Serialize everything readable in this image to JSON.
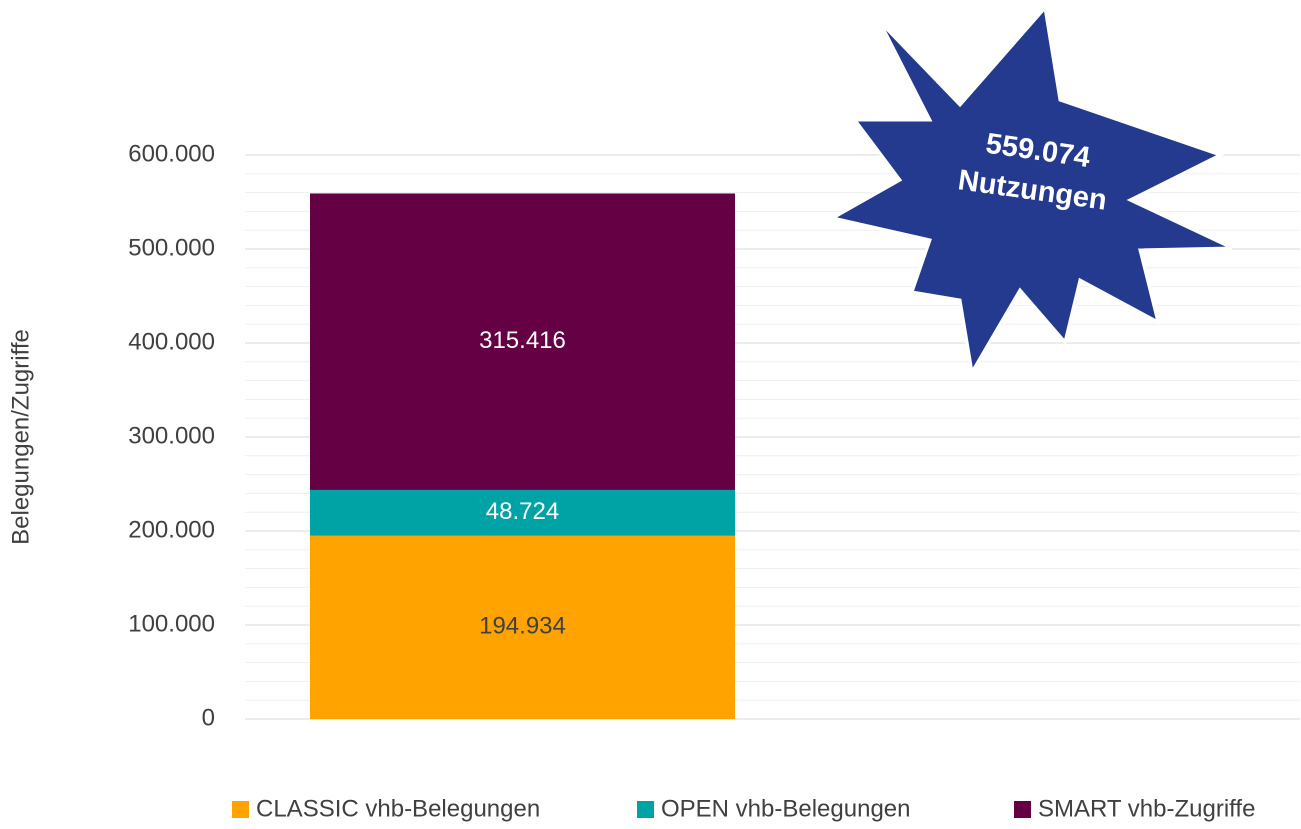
{
  "chart_data": {
    "type": "stacked_bar",
    "categories": [
      null
    ],
    "series": [
      {
        "name": "CLASSIC vhb-Belegungen",
        "color": "#ffa300",
        "label_color": "#404040",
        "values": [
          194934
        ],
        "value_labels": [
          "194.934"
        ]
      },
      {
        "name": "OPEN vhb-Belegungen",
        "color": "#00a3a5",
        "label_color": "#ffffff",
        "values": [
          48724
        ],
        "value_labels": [
          "48.724"
        ]
      },
      {
        "name": "SMART vhb-Zugriffe",
        "color": "#660045",
        "label_color": "#ffffff",
        "values": [
          315416
        ],
        "value_labels": [
          "315.416"
        ]
      }
    ],
    "y_label": "Belegungen/Zugriffe",
    "ylim": [
      0,
      600000
    ],
    "yticks": [
      0,
      {
        "value": 100000,
        "label": "100.000"
      },
      {
        "value": 200000,
        "label": "200.000"
      },
      {
        "value": 300000,
        "label": "300.000"
      },
      {
        "value": 400000,
        "label": "400.000"
      },
      {
        "value": 500000,
        "label": "500.000"
      },
      {
        "value": 600000,
        "label": "600.000"
      }
    ],
    "grid": true,
    "minor_divisions": 5,
    "legend": "bottom",
    "annotation": {
      "lines": [
        "559.074",
        "Nutzungen"
      ],
      "color": "#233a8e"
    }
  }
}
